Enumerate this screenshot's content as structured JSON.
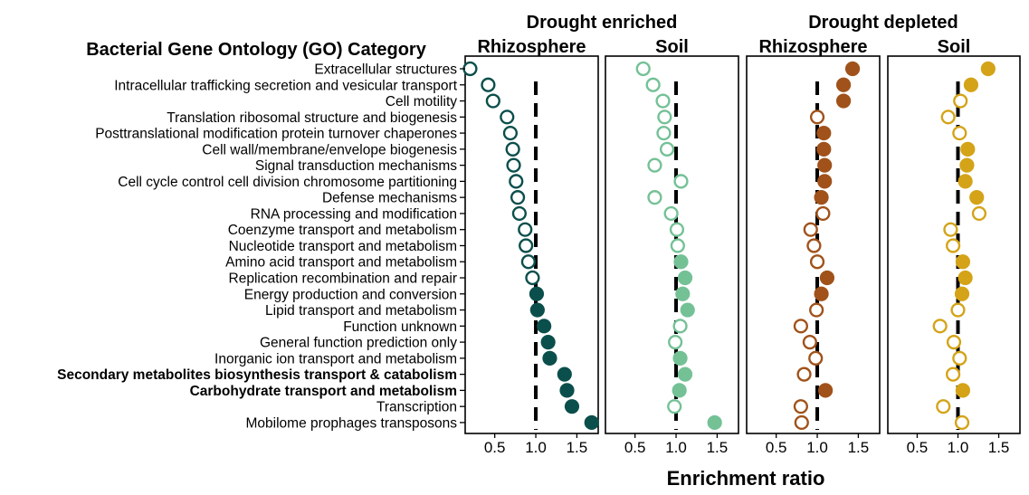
{
  "chart_data": {
    "type": "scatter",
    "title": "Bacterial Gene Ontology (GO) Category",
    "xlabel": "Enrichment ratio",
    "group_titles": [
      "Drought enriched",
      "Drought depleted"
    ],
    "panel_titles": [
      "Rhizosphere",
      "Soil",
      "Rhizosphere",
      "Soil"
    ],
    "categories": [
      "Extracellular structures",
      "Intracellular trafficking secretion and vesicular transport",
      "Cell motility",
      "Translation ribosomal structure and biogenesis",
      "Posttranslational modification protein turnover chaperones",
      "Cell wall/membrane/envelope biogenesis",
      "Signal transduction mechanisms",
      "Cell cycle control cell division chromosome partitioning",
      "Defense mechanisms",
      "RNA processing and modification",
      "Coenzyme transport and metabolism",
      "Nucleotide transport and metabolism",
      "Amino acid transport and metabolism",
      "Replication recombination and repair",
      "Energy production and conversion",
      "Lipid transport and metabolism",
      "Function unknown",
      "General function prediction only",
      "Inorganic ion transport and metabolism",
      "Secondary metabolites biosynthesis transport & catabolism",
      "Carbohydrate transport and metabolism",
      "Transcription",
      "Mobilome prophages transposons"
    ],
    "bold_categories": [
      "Secondary metabolites biosynthesis transport & catabolism",
      "Carbohydrate transport and metabolism"
    ],
    "x_ticks": [
      0.5,
      1.0,
      1.5
    ],
    "x_tick_labels": [
      "0.5",
      "1.0",
      "1.5"
    ],
    "xlim": [
      0.14,
      1.76
    ],
    "reference_line": 1.0,
    "marker_note": "filled = significant, open = not significant",
    "series": [
      {
        "group": "Drought enriched",
        "panel": "Rhizosphere",
        "color": "#0b4f4c",
        "values": [
          0.2,
          0.42,
          0.48,
          0.65,
          0.69,
          0.72,
          0.73,
          0.76,
          0.78,
          0.8,
          0.87,
          0.88,
          0.91,
          0.96,
          1.01,
          1.02,
          1.1,
          1.15,
          1.17,
          1.35,
          1.38,
          1.44,
          1.68
        ],
        "filled": [
          false,
          false,
          false,
          false,
          false,
          false,
          false,
          false,
          false,
          false,
          false,
          false,
          false,
          false,
          true,
          true,
          true,
          true,
          true,
          true,
          true,
          true,
          true
        ]
      },
      {
        "group": "Drought enriched",
        "panel": "Soil",
        "color": "#74c196",
        "values": [
          0.6,
          0.72,
          0.84,
          0.86,
          0.85,
          0.89,
          0.74,
          1.06,
          0.74,
          0.94,
          1.01,
          1.02,
          1.06,
          1.11,
          1.08,
          1.14,
          1.05,
          0.99,
          1.05,
          1.11,
          1.04,
          0.98,
          1.47
        ],
        "filled": [
          false,
          false,
          false,
          false,
          false,
          false,
          false,
          false,
          false,
          false,
          false,
          false,
          true,
          true,
          true,
          true,
          false,
          false,
          true,
          true,
          true,
          false,
          true
        ]
      },
      {
        "group": "Drought depleted",
        "panel": "Rhizosphere",
        "color": "#a0521a",
        "values": [
          1.43,
          1.32,
          1.32,
          1.0,
          1.08,
          1.08,
          1.09,
          1.09,
          1.05,
          1.07,
          0.92,
          0.96,
          1.0,
          1.12,
          1.05,
          0.99,
          0.8,
          0.91,
          0.98,
          0.84,
          1.1,
          0.8,
          0.81
        ],
        "filled": [
          true,
          true,
          true,
          false,
          true,
          true,
          true,
          true,
          true,
          false,
          false,
          false,
          false,
          true,
          true,
          false,
          false,
          false,
          false,
          false,
          true,
          false,
          false
        ]
      },
      {
        "group": "Drought depleted",
        "panel": "Soil",
        "color": "#d4a317",
        "values": [
          1.37,
          1.16,
          1.03,
          0.88,
          1.02,
          1.12,
          1.11,
          1.09,
          1.23,
          1.26,
          0.91,
          0.94,
          1.06,
          1.09,
          1.05,
          1.0,
          0.78,
          0.95,
          1.02,
          0.94,
          1.06,
          0.82,
          1.05
        ],
        "filled": [
          true,
          true,
          false,
          false,
          false,
          true,
          true,
          true,
          true,
          false,
          false,
          false,
          true,
          true,
          true,
          false,
          false,
          false,
          false,
          false,
          true,
          false,
          false
        ]
      }
    ]
  }
}
